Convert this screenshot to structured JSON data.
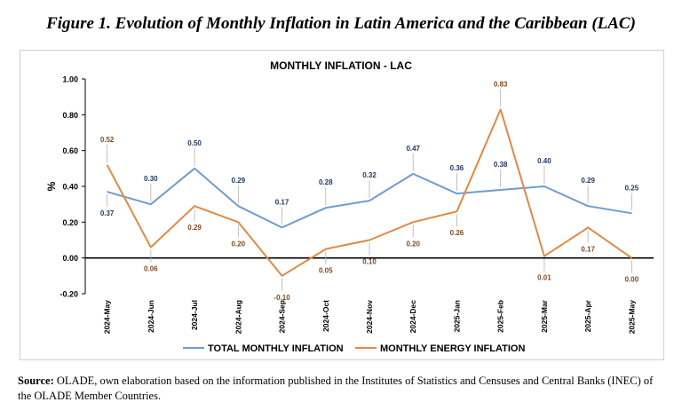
{
  "figure_title": "Figure 1. Evolution of Monthly Inflation in Latin America and the Caribbean (LAC)",
  "source": {
    "label": "Source:",
    "text": " OLADE, own elaboration based on the information published in the Institutes of Statistics and Censuses and Central Banks (INEC) of the OLADE Member Countries."
  },
  "colors": {
    "total": "#6f9ccf",
    "energy": "#e08a45",
    "total_label": "#1f3864",
    "energy_label": "#7f4a1e"
  },
  "chart_data": {
    "type": "line",
    "title": "MONTHLY INFLATION  - LAC",
    "ylabel": "%",
    "xlabel": "",
    "ylim": [
      -0.2,
      1.0
    ],
    "y_ticks": [
      "1.00",
      "0.80",
      "0.60",
      "0.40",
      "0.20",
      "0.00",
      "-0.20"
    ],
    "grid": false,
    "legend_position": "bottom",
    "categories": [
      "2024-May",
      "2024-Jun",
      "2024-Jul",
      "2024-Aug",
      "2024-Sep",
      "2024-Oct",
      "2024-Nov",
      "2024-Dec",
      "2025-Jan",
      "2025-Feb",
      "2025-Mar",
      "2025-Apr",
      "2025-May"
    ],
    "series": [
      {
        "name": "TOTAL MONTHLY INFLATION",
        "values": [
          0.37,
          0.3,
          0.5,
          0.29,
          0.17,
          0.28,
          0.32,
          0.47,
          0.36,
          0.38,
          0.4,
          0.29,
          0.25
        ],
        "labels": [
          "0.37",
          "0.30",
          "0.50",
          "0.29",
          "0.17",
          "0.28",
          "0.32",
          "0.47",
          "0.36",
          "0.38",
          "0.40",
          "0.29",
          "0.25"
        ]
      },
      {
        "name": "MONTHLY ENERGY INFLATION",
        "values": [
          0.52,
          0.06,
          0.29,
          0.2,
          -0.1,
          0.05,
          0.1,
          0.2,
          0.26,
          0.83,
          0.01,
          0.17,
          0.0
        ],
        "labels": [
          "0.52",
          "0.06",
          "0.29",
          "0.20",
          "-0.10",
          "0.05",
          "0.10",
          "0.20",
          "0.26",
          "0.83",
          "0.01",
          "0.17",
          "0.00"
        ]
      }
    ]
  }
}
